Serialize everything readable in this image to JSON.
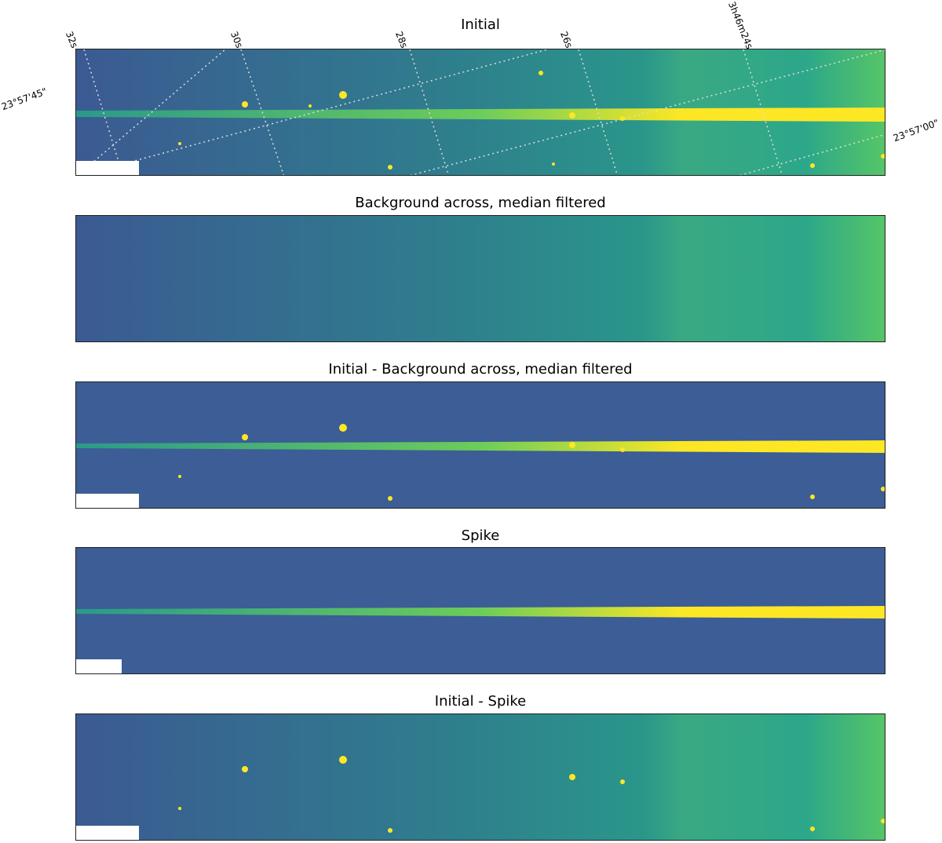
{
  "panels": [
    {
      "title": "Initial"
    },
    {
      "title": "Background across, median filtered"
    },
    {
      "title": "Initial - Background across, median filtered"
    },
    {
      "title": "Spike"
    },
    {
      "title": "Initial - Spike"
    }
  ],
  "axes": {
    "ra_ticks": [
      "32s",
      "30s",
      "28s",
      "26s",
      "3h46m24s"
    ],
    "dec_ticks": [
      "23°57'45\"",
      "23°57'00\""
    ]
  },
  "colors": {
    "low": "#3b5a92",
    "mid": "#21918c",
    "high": "#5ec962",
    "peak": "#fde725"
  }
}
